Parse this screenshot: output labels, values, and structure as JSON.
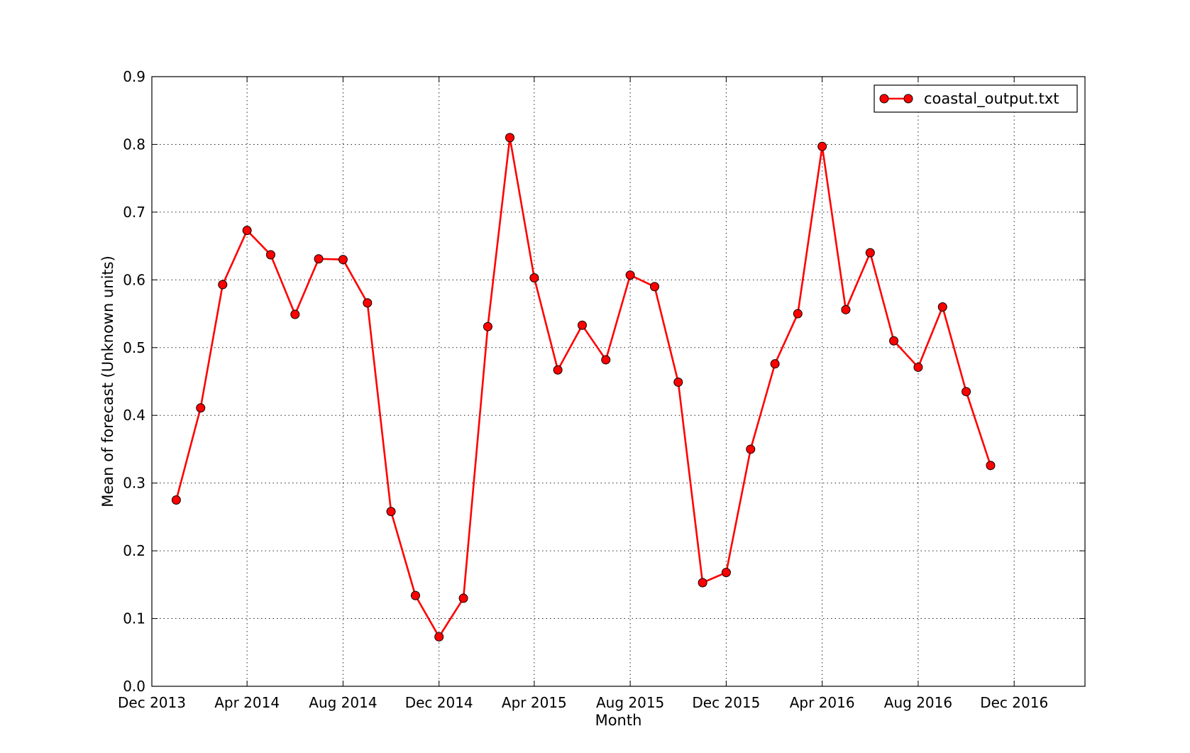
{
  "chart_data": {
    "type": "line",
    "title": "",
    "xlabel": "Month",
    "ylabel": "Mean of forecast (Unknown units)",
    "x_tick_labels": [
      "Dec 2013",
      "Apr 2014",
      "Aug 2014",
      "Dec 2014",
      "Apr 2015",
      "Aug 2015",
      "Dec 2015",
      "Apr 2016",
      "Aug 2016",
      "Dec 2016"
    ],
    "x_tick_dates": [
      "2013-12-01",
      "2014-04-01",
      "2014-08-01",
      "2014-12-01",
      "2015-04-01",
      "2015-08-01",
      "2015-12-01",
      "2016-04-01",
      "2016-08-01",
      "2016-12-01"
    ],
    "xlim": [
      "2013-12-01",
      "2017-03-01"
    ],
    "y_tick_labels": [
      "0.0",
      "0.1",
      "0.2",
      "0.3",
      "0.4",
      "0.5",
      "0.6",
      "0.7",
      "0.8",
      "0.9"
    ],
    "ylim": [
      0.0,
      0.9
    ],
    "grid": true,
    "legend_position": "top-right",
    "colors": {
      "series": "#ff0000",
      "marker_edge": "#000000"
    },
    "series": [
      {
        "name": "coastal_output.txt",
        "x": [
          "2014-01-01",
          "2014-02-01",
          "2014-03-01",
          "2014-04-01",
          "2014-05-01",
          "2014-06-01",
          "2014-07-01",
          "2014-08-01",
          "2014-09-01",
          "2014-10-01",
          "2014-11-01",
          "2014-12-01",
          "2015-01-01",
          "2015-02-01",
          "2015-03-01",
          "2015-04-01",
          "2015-05-01",
          "2015-06-01",
          "2015-07-01",
          "2015-08-01",
          "2015-09-01",
          "2015-10-01",
          "2015-11-01",
          "2015-12-01",
          "2016-01-01",
          "2016-02-01",
          "2016-03-01",
          "2016-04-01",
          "2016-05-01",
          "2016-06-01",
          "2016-07-01",
          "2016-08-01",
          "2016-09-01",
          "2016-10-01",
          "2016-11-01"
        ],
        "values": [
          0.275,
          0.411,
          0.593,
          0.673,
          0.637,
          0.549,
          0.631,
          0.63,
          0.566,
          0.258,
          0.134,
          0.073,
          0.13,
          0.531,
          0.81,
          0.603,
          0.467,
          0.533,
          0.482,
          0.607,
          0.59,
          0.449,
          0.153,
          0.168,
          0.35,
          0.476,
          0.55,
          0.797,
          0.556,
          0.64,
          0.51,
          0.471,
          0.56,
          0.435,
          0.326
        ]
      }
    ]
  }
}
